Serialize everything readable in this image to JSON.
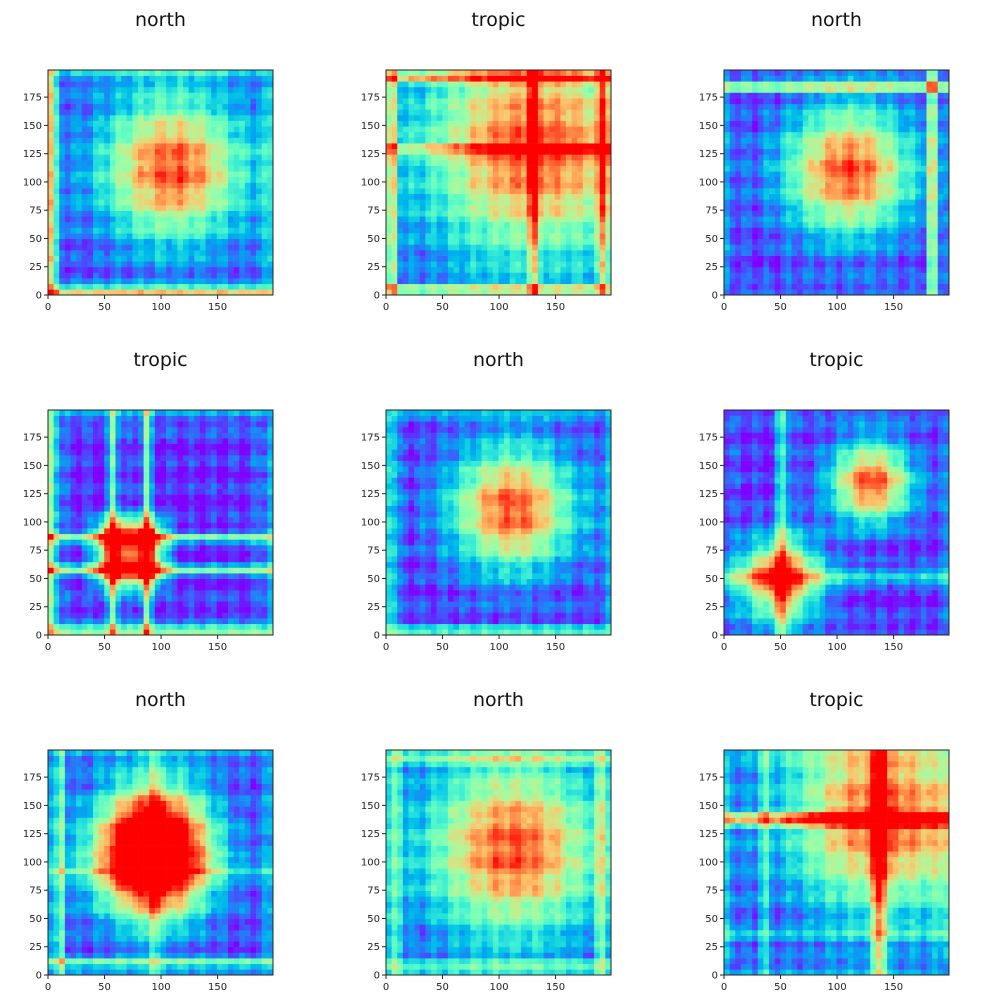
{
  "chart_data": [
    {
      "type": "heatmap",
      "title": "north",
      "xticks": [
        "0",
        "50",
        "100",
        "150"
      ],
      "yticks": [
        "0",
        "25",
        "50",
        "75",
        "100",
        "125",
        "150",
        "175"
      ],
      "xlim": [
        0,
        199
      ],
      "ylim": [
        0,
        199
      ],
      "colormap": "rainbow",
      "pattern": {
        "peaks": [
          [
            110,
            112
          ]
        ],
        "spread": 45,
        "lines": [
          [
            3,
            0.6
          ]
        ],
        "corner": 0.55
      }
    },
    {
      "type": "heatmap",
      "title": "tropic",
      "xticks": [
        "0",
        "50",
        "100",
        "150"
      ],
      "yticks": [
        "0",
        "25",
        "50",
        "75",
        "100",
        "125",
        "150",
        "175"
      ],
      "xlim": [
        0,
        199
      ],
      "ylim": [
        0,
        199
      ],
      "colormap": "rainbow",
      "pattern": {
        "peaks": [
          [
            130,
            130
          ]
        ],
        "spread": 70,
        "lines": [
          [
            130,
            0.55
          ],
          [
            6,
            0.55
          ],
          [
            192,
            0.5
          ]
        ],
        "corner": 0.4
      }
    },
    {
      "type": "heatmap",
      "title": "north",
      "xticks": [
        "0",
        "50",
        "100",
        "150"
      ],
      "yticks": [
        "0",
        "25",
        "50",
        "75",
        "100",
        "125",
        "150",
        "175"
      ],
      "xlim": [
        0,
        199
      ],
      "ylim": [
        0,
        199
      ],
      "colormap": "rainbow",
      "pattern": {
        "peaks": [
          [
            110,
            110
          ]
        ],
        "spread": 40,
        "lines": [
          [
            184,
            0.7
          ]
        ],
        "corner": 0.3
      }
    },
    {
      "type": "heatmap",
      "title": "tropic",
      "xticks": [
        "0",
        "50",
        "100",
        "150"
      ],
      "yticks": [
        "0",
        "25",
        "50",
        "75",
        "100",
        "125",
        "150",
        "175"
      ],
      "xlim": [
        0,
        199
      ],
      "ylim": [
        0,
        199
      ],
      "colormap": "rainbow",
      "pattern": {
        "peaks": [
          [
            58,
            58
          ],
          [
            87,
            87
          ],
          [
            58,
            87
          ],
          [
            87,
            58
          ]
        ],
        "spread": 12,
        "lines": [
          [
            58,
            0.6
          ],
          [
            87,
            0.6
          ],
          [
            4,
            0.5
          ]
        ],
        "corner": 0.5
      }
    },
    {
      "type": "heatmap",
      "title": "north",
      "xticks": [
        "0",
        "50",
        "100",
        "150"
      ],
      "yticks": [
        "0",
        "25",
        "50",
        "75",
        "100",
        "125",
        "150",
        "175"
      ],
      "xlim": [
        0,
        199
      ],
      "ylim": [
        0,
        199
      ],
      "colormap": "rainbow",
      "pattern": {
        "peaks": [
          [
            112,
            112
          ]
        ],
        "spread": 38,
        "lines": [
          [
            5,
            0.35
          ]
        ],
        "corner": 0.35
      }
    },
    {
      "type": "heatmap",
      "title": "tropic",
      "xticks": [
        "0",
        "50",
        "100",
        "150"
      ],
      "yticks": [
        "0",
        "25",
        "50",
        "75",
        "100",
        "125",
        "150",
        "175"
      ],
      "xlim": [
        0,
        199
      ],
      "ylim": [
        0,
        199
      ],
      "colormap": "rainbow",
      "pattern": {
        "peaks": [
          [
            130,
            135
          ],
          [
            50,
            50
          ]
        ],
        "spread": 25,
        "lines": [
          [
            50,
            0.35
          ],
          [
            55,
            0.3
          ]
        ],
        "corner": 0.2
      }
    },
    {
      "type": "heatmap",
      "title": "north",
      "xticks": [
        "0",
        "50",
        "100",
        "150"
      ],
      "yticks": [
        "0",
        "25",
        "50",
        "75",
        "100",
        "125",
        "150",
        "175"
      ],
      "xlim": [
        0,
        199
      ],
      "ylim": [
        0,
        199
      ],
      "colormap": "rainbow",
      "pattern": {
        "peaks": [
          [
            93,
            93
          ],
          [
            93,
            125
          ]
        ],
        "spread": 35,
        "lines": [
          [
            12,
            0.45
          ],
          [
            93,
            0.35
          ]
        ],
        "corner": 0.45
      }
    },
    {
      "type": "heatmap",
      "title": "north",
      "xticks": [
        "0",
        "50",
        "100",
        "150"
      ],
      "yticks": [
        "0",
        "25",
        "50",
        "75",
        "100",
        "125",
        "150",
        "175"
      ],
      "xlim": [
        0,
        199
      ],
      "ylim": [
        0,
        199
      ],
      "colormap": "rainbow",
      "pattern": {
        "peaks": [
          [
            112,
            112
          ]
        ],
        "spread": 55,
        "lines": [
          [
            10,
            0.4
          ],
          [
            190,
            0.35
          ]
        ],
        "corner": 0.4
      }
    },
    {
      "type": "heatmap",
      "title": "tropic",
      "xticks": [
        "0",
        "50",
        "100",
        "150"
      ],
      "yticks": [
        "0",
        "25",
        "50",
        "75",
        "100",
        "125",
        "150",
        "175"
      ],
      "xlim": [
        0,
        199
      ],
      "ylim": [
        0,
        199
      ],
      "colormap": "rainbow",
      "pattern": {
        "peaks": [
          [
            140,
            140
          ]
        ],
        "spread": 60,
        "lines": [
          [
            140,
            0.55
          ],
          [
            135,
            0.5
          ],
          [
            35,
            0.35
          ]
        ],
        "corner": 0.45
      }
    }
  ]
}
